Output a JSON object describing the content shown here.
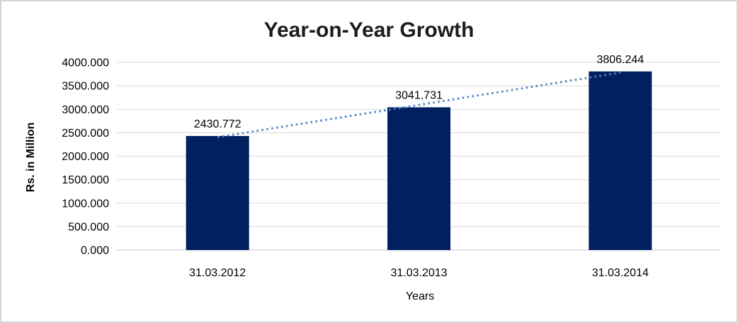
{
  "chart_data": {
    "type": "bar",
    "title": "Year-on-Year Growth",
    "xlabel": "Years",
    "ylabel": "Rs. in Million",
    "categories": [
      "31.03.2012",
      "31.03.2013",
      "31.03.2014"
    ],
    "values": [
      2430.772,
      3041.731,
      3806.244
    ],
    "data_labels": [
      "2430.772",
      "3041.731",
      "3806.244"
    ],
    "ylim": [
      0,
      4000
    ],
    "ytick_step": 500,
    "ytick_labels": [
      "0.000",
      "500.000",
      "1000.000",
      "1500.000",
      "2000.000",
      "2500.000",
      "3000.000",
      "3500.000",
      "4000.000"
    ],
    "grid": true,
    "legend_position": "none",
    "trendline": {
      "type": "linear",
      "style": "dotted"
    },
    "colors": {
      "bar": "#002060",
      "trendline": "#4f86c6",
      "gridline": "#d9d9d9",
      "baseline": "#c6c9cc",
      "text": "#000000",
      "frame": "#d2d5d8"
    }
  }
}
